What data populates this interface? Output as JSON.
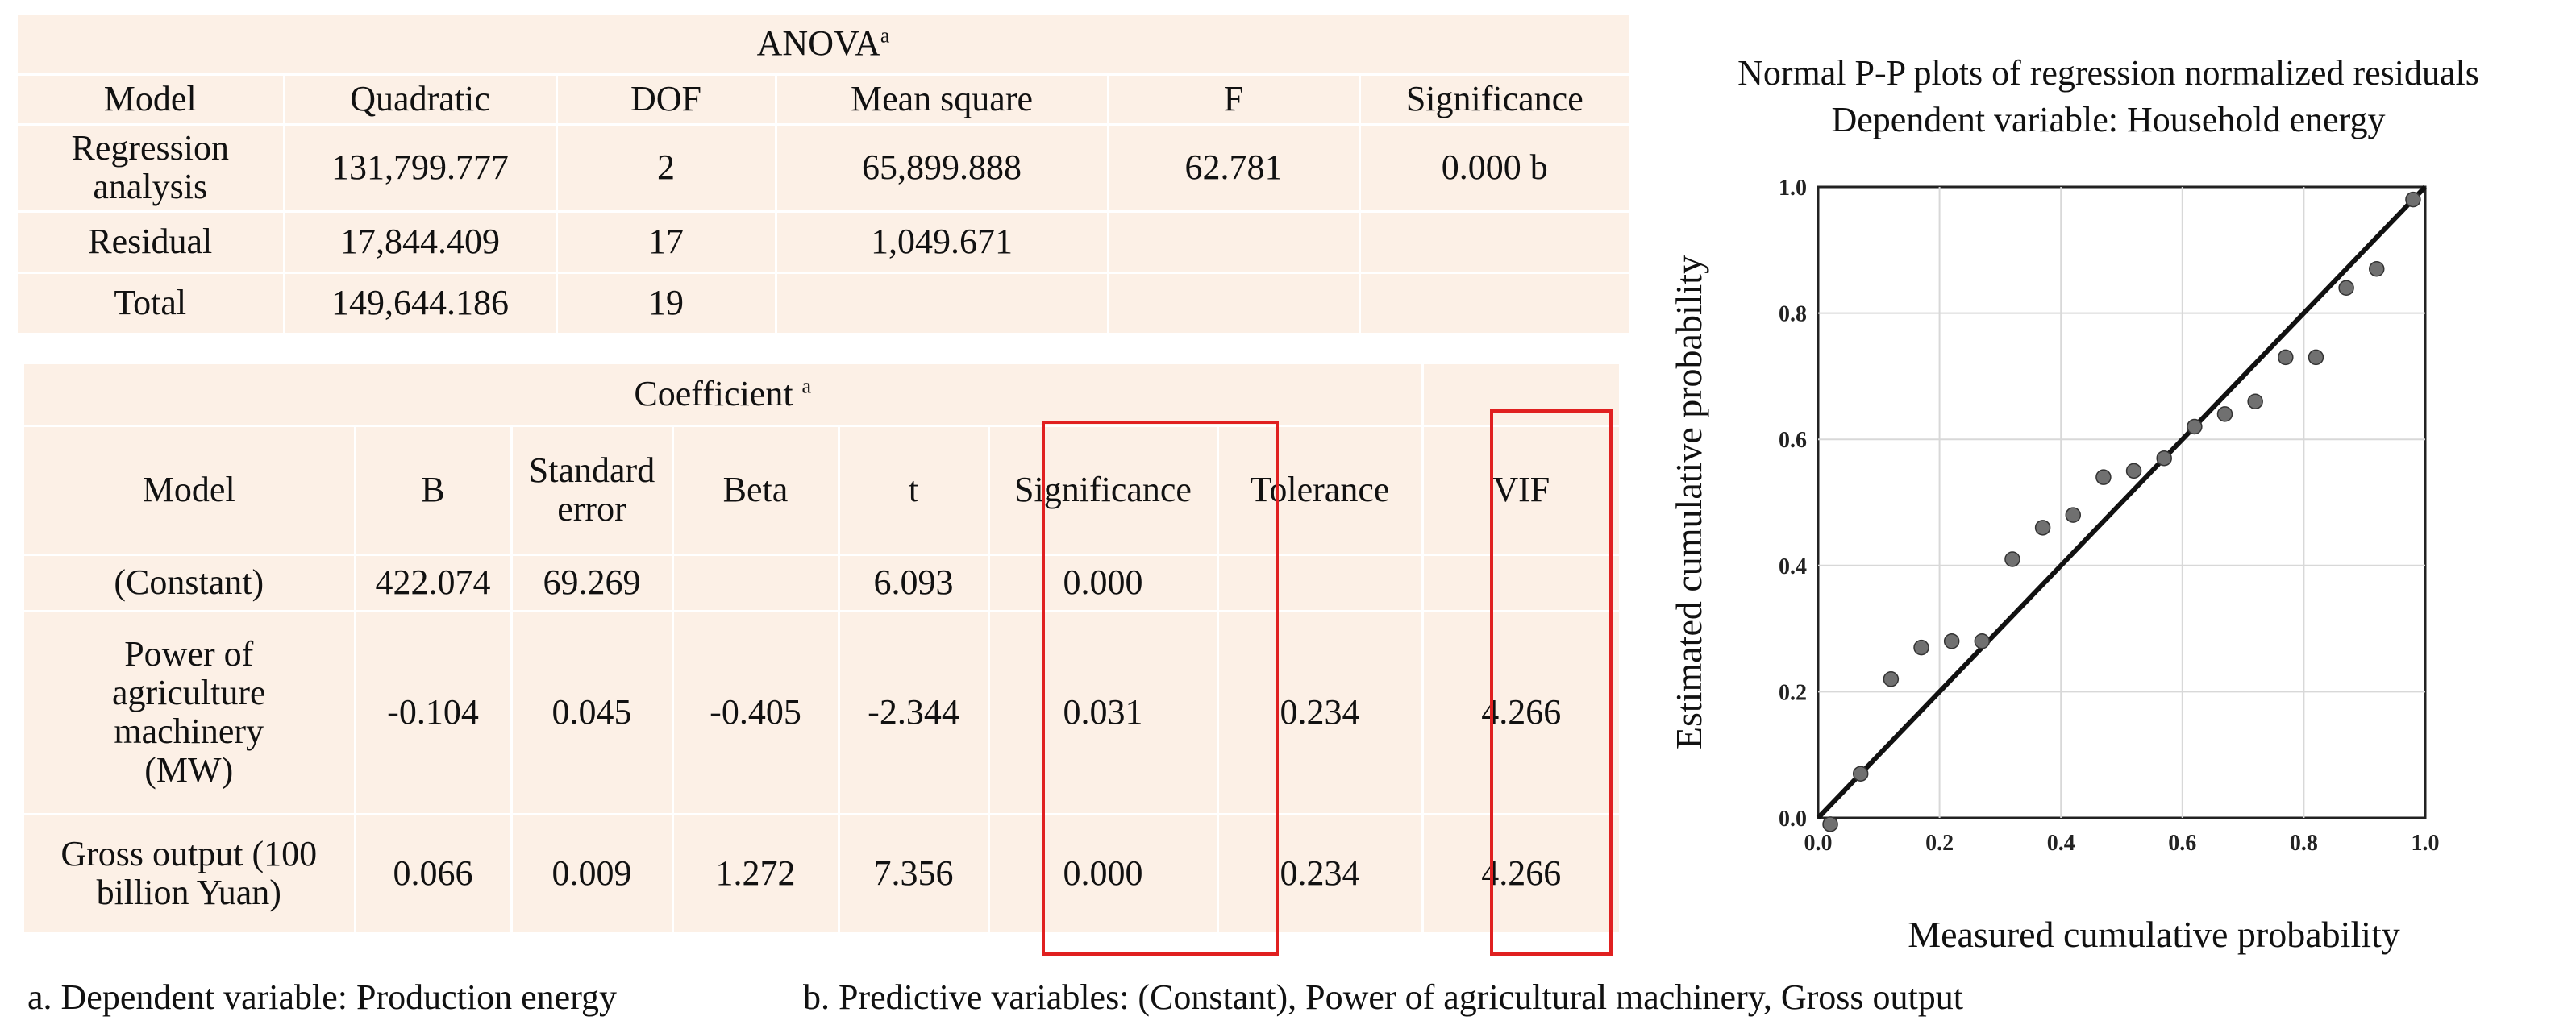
{
  "anova": {
    "title": "ANOVA",
    "title_sup": "a",
    "headers": [
      "Model",
      "Quadratic",
      "DOF",
      "Mean square",
      "F",
      "Significance"
    ],
    "rows": [
      {
        "model": "Regression analysis",
        "quadratic": "131,799.777",
        "dof": "2",
        "mean_square": "65,899.888",
        "f": "62.781",
        "sig": "0.000 b"
      },
      {
        "model": "Residual",
        "quadratic": "17,844.409",
        "dof": "17",
        "mean_square": "1,049.671",
        "f": "",
        "sig": ""
      },
      {
        "model": "Total",
        "quadratic": "149,644.186",
        "dof": "19",
        "mean_square": "",
        "f": "",
        "sig": ""
      }
    ]
  },
  "coefficient": {
    "title": "Coefficient",
    "title_sup": "a",
    "headers": [
      "Model",
      "B",
      "Standard error",
      "Beta",
      "t",
      "Significance",
      "Tolerance",
      "VIF"
    ],
    "rows": [
      {
        "model": "(Constant)",
        "b": "422.074",
        "se": "69.269",
        "beta": "",
        "t": "6.093",
        "sig": "0.000",
        "tol": "",
        "vif": ""
      },
      {
        "model": "Power of agriculture machinery (MW)",
        "b": "-0.104",
        "se": "0.045",
        "beta": "-0.405",
        "t": "-2.344",
        "sig": "0.031",
        "tol": "0.234",
        "vif": "4.266"
      },
      {
        "model": "Gross output (100 billion Yuan)",
        "b": "0.066",
        "se": "0.009",
        "beta": "1.272",
        "t": "7.356",
        "sig": "0.000",
        "tol": "0.234",
        "vif": "4.266"
      }
    ]
  },
  "footnotes": {
    "a": "a. Dependent variable: Production energy",
    "b": "b. Predictive variables: (Constant), Power of agricultural machinery, Gross output"
  },
  "highlight_color": "#e02020",
  "chart_data": {
    "type": "scatter",
    "title": "Normal P-P plots of regression normalized residuals",
    "subtitle": "Dependent variable: Household energy",
    "xlabel": "Measured cumulative probability",
    "ylabel": "Estimated cumulative probability",
    "xlim": [
      0,
      1
    ],
    "ylim": [
      0,
      1
    ],
    "x_ticks": [
      "0.0",
      "0.2",
      "0.4",
      "0.6",
      "0.8",
      "1.0"
    ],
    "y_ticks": [
      "0.0",
      "0.2",
      "0.4",
      "0.6",
      "0.8",
      "1.0"
    ],
    "grid": true,
    "reference_line": [
      [
        0,
        0
      ],
      [
        1,
        1
      ]
    ],
    "points": [
      [
        0.02,
        -0.01
      ],
      [
        0.07,
        0.07
      ],
      [
        0.12,
        0.22
      ],
      [
        0.17,
        0.27
      ],
      [
        0.22,
        0.28
      ],
      [
        0.27,
        0.28
      ],
      [
        0.32,
        0.41
      ],
      [
        0.37,
        0.46
      ],
      [
        0.42,
        0.48
      ],
      [
        0.47,
        0.54
      ],
      [
        0.52,
        0.55
      ],
      [
        0.57,
        0.57
      ],
      [
        0.62,
        0.62
      ],
      [
        0.67,
        0.64
      ],
      [
        0.72,
        0.66
      ],
      [
        0.77,
        0.73
      ],
      [
        0.82,
        0.73
      ],
      [
        0.87,
        0.84
      ],
      [
        0.92,
        0.87
      ],
      [
        0.98,
        0.98
      ]
    ],
    "point_color": "#707070",
    "line_color": "#111111"
  }
}
